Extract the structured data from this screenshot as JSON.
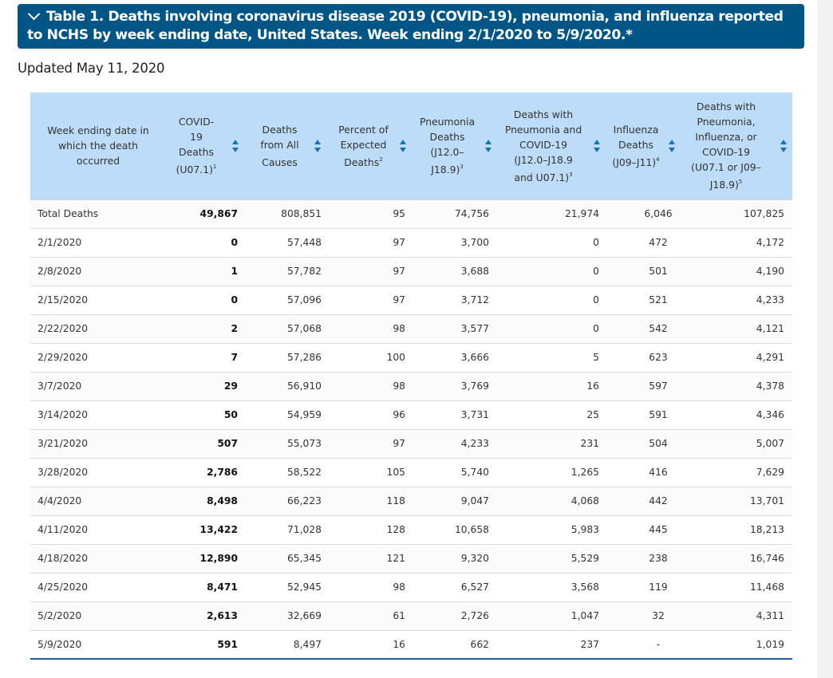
{
  "title": "Table 1. Deaths involving coronavirus disease 2019 (COVID-19), pneumonia, and influenza reported to NCHS by week ending date, United States. Week ending 2/1/2020 to 5/9/2020.*",
  "updated": "Updated May 11, 2020",
  "columns": [
    {
      "label": "Week ending date in which the death occurred",
      "sup": ""
    },
    {
      "label": "COVID-19 Deaths (U07.1)",
      "sup": "1"
    },
    {
      "label": "Deaths from All Causes",
      "sup": ""
    },
    {
      "label": "Percent of Expected Deaths",
      "sup": "2"
    },
    {
      "label": "Pneumonia Deaths (J12.0–J18.9)",
      "sup": "3"
    },
    {
      "label": "Deaths with Pneumonia and COVID-19 (J12.0–J18.9 and U07.1)",
      "sup": "3"
    },
    {
      "label": "Influenza Deaths (J09–J11)",
      "sup": "4"
    },
    {
      "label": "Deaths with Pneumonia, Influenza, or COVID-19 (U07.1 or J09–J18.9)",
      "sup": "5"
    }
  ],
  "rows": [
    [
      "Total Deaths",
      "49,867",
      "808,851",
      "95",
      "74,756",
      "21,974",
      "6,046",
      "107,825"
    ],
    [
      "2/1/2020",
      "0",
      "57,448",
      "97",
      "3,700",
      "0",
      "472",
      "4,172"
    ],
    [
      "2/8/2020",
      "1",
      "57,782",
      "97",
      "3,688",
      "0",
      "501",
      "4,190"
    ],
    [
      "2/15/2020",
      "0",
      "57,096",
      "97",
      "3,712",
      "0",
      "521",
      "4,233"
    ],
    [
      "2/22/2020",
      "2",
      "57,068",
      "98",
      "3,577",
      "0",
      "542",
      "4,121"
    ],
    [
      "2/29/2020",
      "7",
      "57,286",
      "100",
      "3,666",
      "5",
      "623",
      "4,291"
    ],
    [
      "3/7/2020",
      "29",
      "56,910",
      "98",
      "3,769",
      "16",
      "597",
      "4,378"
    ],
    [
      "3/14/2020",
      "50",
      "54,959",
      "96",
      "3,731",
      "25",
      "591",
      "4,346"
    ],
    [
      "3/21/2020",
      "507",
      "55,073",
      "97",
      "4,233",
      "231",
      "504",
      "5,007"
    ],
    [
      "3/28/2020",
      "2,786",
      "58,522",
      "105",
      "5,740",
      "1,265",
      "416",
      "7,629"
    ],
    [
      "4/4/2020",
      "8,498",
      "66,223",
      "118",
      "9,047",
      "4,068",
      "442",
      "13,701"
    ],
    [
      "4/11/2020",
      "13,422",
      "71,028",
      "128",
      "10,658",
      "5,983",
      "445",
      "18,213"
    ],
    [
      "4/18/2020",
      "12,890",
      "65,345",
      "121",
      "9,320",
      "5,529",
      "238",
      "16,746"
    ],
    [
      "4/25/2020",
      "8,471",
      "52,945",
      "98",
      "6,527",
      "3,568",
      "119",
      "11,468"
    ],
    [
      "5/2/2020",
      "2,613",
      "32,669",
      "61",
      "2,726",
      "1,047",
      "32",
      "4,311"
    ],
    [
      "5/9/2020",
      "591",
      "8,497",
      "16",
      "662",
      "237",
      "-",
      "1,019"
    ]
  ],
  "colors": {
    "title_bg": "#005587",
    "header_bg": "#bcdcf7",
    "sort_arrow": "#1a70b8"
  }
}
